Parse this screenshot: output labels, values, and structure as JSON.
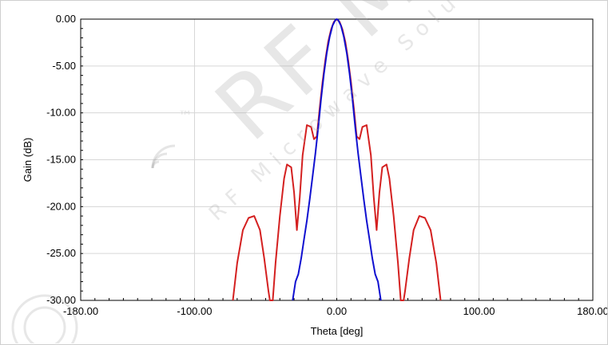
{
  "chart_data": {
    "type": "line",
    "xlabel": "Theta [deg]",
    "ylabel": "Gain (dB)",
    "xlim": [
      -180,
      180
    ],
    "ylim": [
      -30,
      0
    ],
    "x_ticks": [
      "-180.00",
      "-100.00",
      "0.00",
      "100.00",
      "180.00"
    ],
    "x_tick_values": [
      -180,
      -100,
      0,
      100,
      180
    ],
    "y_ticks": [
      "0.00",
      "-5.00",
      "-10.00",
      "-15.00",
      "-20.00",
      "-25.00",
      "-30.00"
    ],
    "y_tick_values": [
      0,
      -5,
      -10,
      -15,
      -20,
      -25,
      -30
    ],
    "grid": true,
    "series": [
      {
        "color": "#d42020",
        "x": [
          -73,
          -70,
          -66,
          -62,
          -58,
          -54,
          -51,
          -48,
          -47,
          -45,
          -43,
          -40,
          -37,
          -35,
          -32,
          -30,
          -28,
          -26,
          -24,
          -21,
          -18,
          -16,
          -14,
          -12,
          -10,
          -8,
          -6,
          -4,
          -2,
          0,
          2,
          4,
          6,
          8,
          10,
          12,
          14,
          16,
          18,
          21,
          24,
          26,
          28,
          30,
          32,
          35,
          37,
          40,
          43,
          45,
          47,
          48,
          51,
          54,
          58,
          62,
          66,
          70,
          73
        ],
        "y": [
          -30,
          -26,
          -22.5,
          -21.2,
          -21,
          -22.5,
          -25.5,
          -29,
          -30,
          -30,
          -26,
          -21,
          -17,
          -15.5,
          -15.8,
          -18.5,
          -22.5,
          -19,
          -14.5,
          -11.3,
          -11.5,
          -12.8,
          -12.5,
          -9.5,
          -6.7,
          -4.3,
          -2.4,
          -1.1,
          -0.3,
          0,
          -0.3,
          -1.1,
          -2.4,
          -4.3,
          -6.7,
          -9.5,
          -12.5,
          -12.8,
          -11.5,
          -11.3,
          -14.5,
          -19,
          -22.5,
          -18.5,
          -15.8,
          -15.5,
          -17,
          -21,
          -26,
          -30,
          -30,
          -29,
          -25.5,
          -22.5,
          -21,
          -21.2,
          -22.5,
          -26,
          -30
        ]
      },
      {
        "color": "#1010d0",
        "x": [
          -31,
          -29,
          -27,
          -25,
          -23,
          -21,
          -19,
          -17,
          -15,
          -13,
          -11,
          -9,
          -7,
          -5,
          -3,
          -1,
          0,
          1,
          3,
          5,
          7,
          9,
          11,
          13,
          15,
          17,
          19,
          21,
          23,
          25,
          27,
          29,
          31
        ],
        "y": [
          -30,
          -28,
          -27.2,
          -25.5,
          -23.5,
          -21.5,
          -19.2,
          -16.8,
          -14.3,
          -11.5,
          -8.5,
          -5.8,
          -3.6,
          -1.9,
          -0.7,
          -0.1,
          0,
          -0.1,
          -0.7,
          -1.9,
          -3.6,
          -5.8,
          -8.5,
          -11.5,
          -14.3,
          -16.8,
          -19.2,
          -21.5,
          -23.5,
          -25.5,
          -27.2,
          -28,
          -30
        ]
      }
    ]
  },
  "watermark": {
    "brand": "RF MW",
    "tagline": "RF Microwave Solutions",
    "tm": "™"
  }
}
